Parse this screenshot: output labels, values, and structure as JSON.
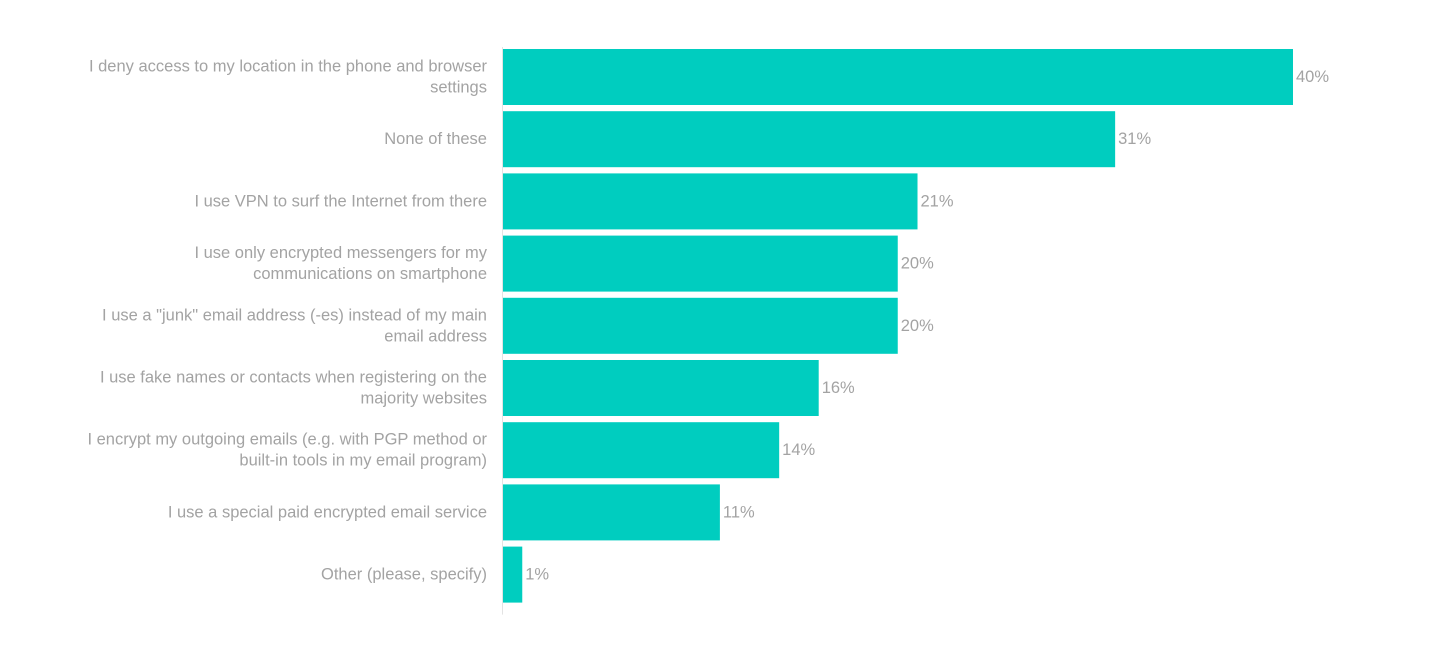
{
  "chart_data": {
    "type": "bar",
    "orientation": "horizontal",
    "categories": [
      [
        "I deny access to my location in the phone and browser",
        "settings"
      ],
      [
        "None of these"
      ],
      [
        "I use VPN to surf the Internet from there"
      ],
      [
        "I use only encrypted messengers for my",
        "communications on smartphone"
      ],
      [
        "I use a \"junk\" email address (-es) instead of my main",
        "email address"
      ],
      [
        "I use fake names or contacts when registering on the",
        "majority websites"
      ],
      [
        "I encrypt my outgoing emails (e.g. with PGP method or",
        "built-in tools in my email program)"
      ],
      [
        "I use a special paid encrypted email service"
      ],
      [
        "Other (please, specify)"
      ]
    ],
    "values": [
      40,
      31,
      21,
      20,
      20,
      16,
      14,
      11,
      1
    ],
    "value_labels": [
      "40%",
      "31%",
      "21%",
      "20%",
      "20%",
      "16%",
      "14%",
      "11%",
      "1%"
    ],
    "unit": "%",
    "xlim": [
      0,
      40
    ],
    "grid": false,
    "legend": "none",
    "bar_color": "#00cdbf",
    "text_color": "#a3a3a3"
  }
}
